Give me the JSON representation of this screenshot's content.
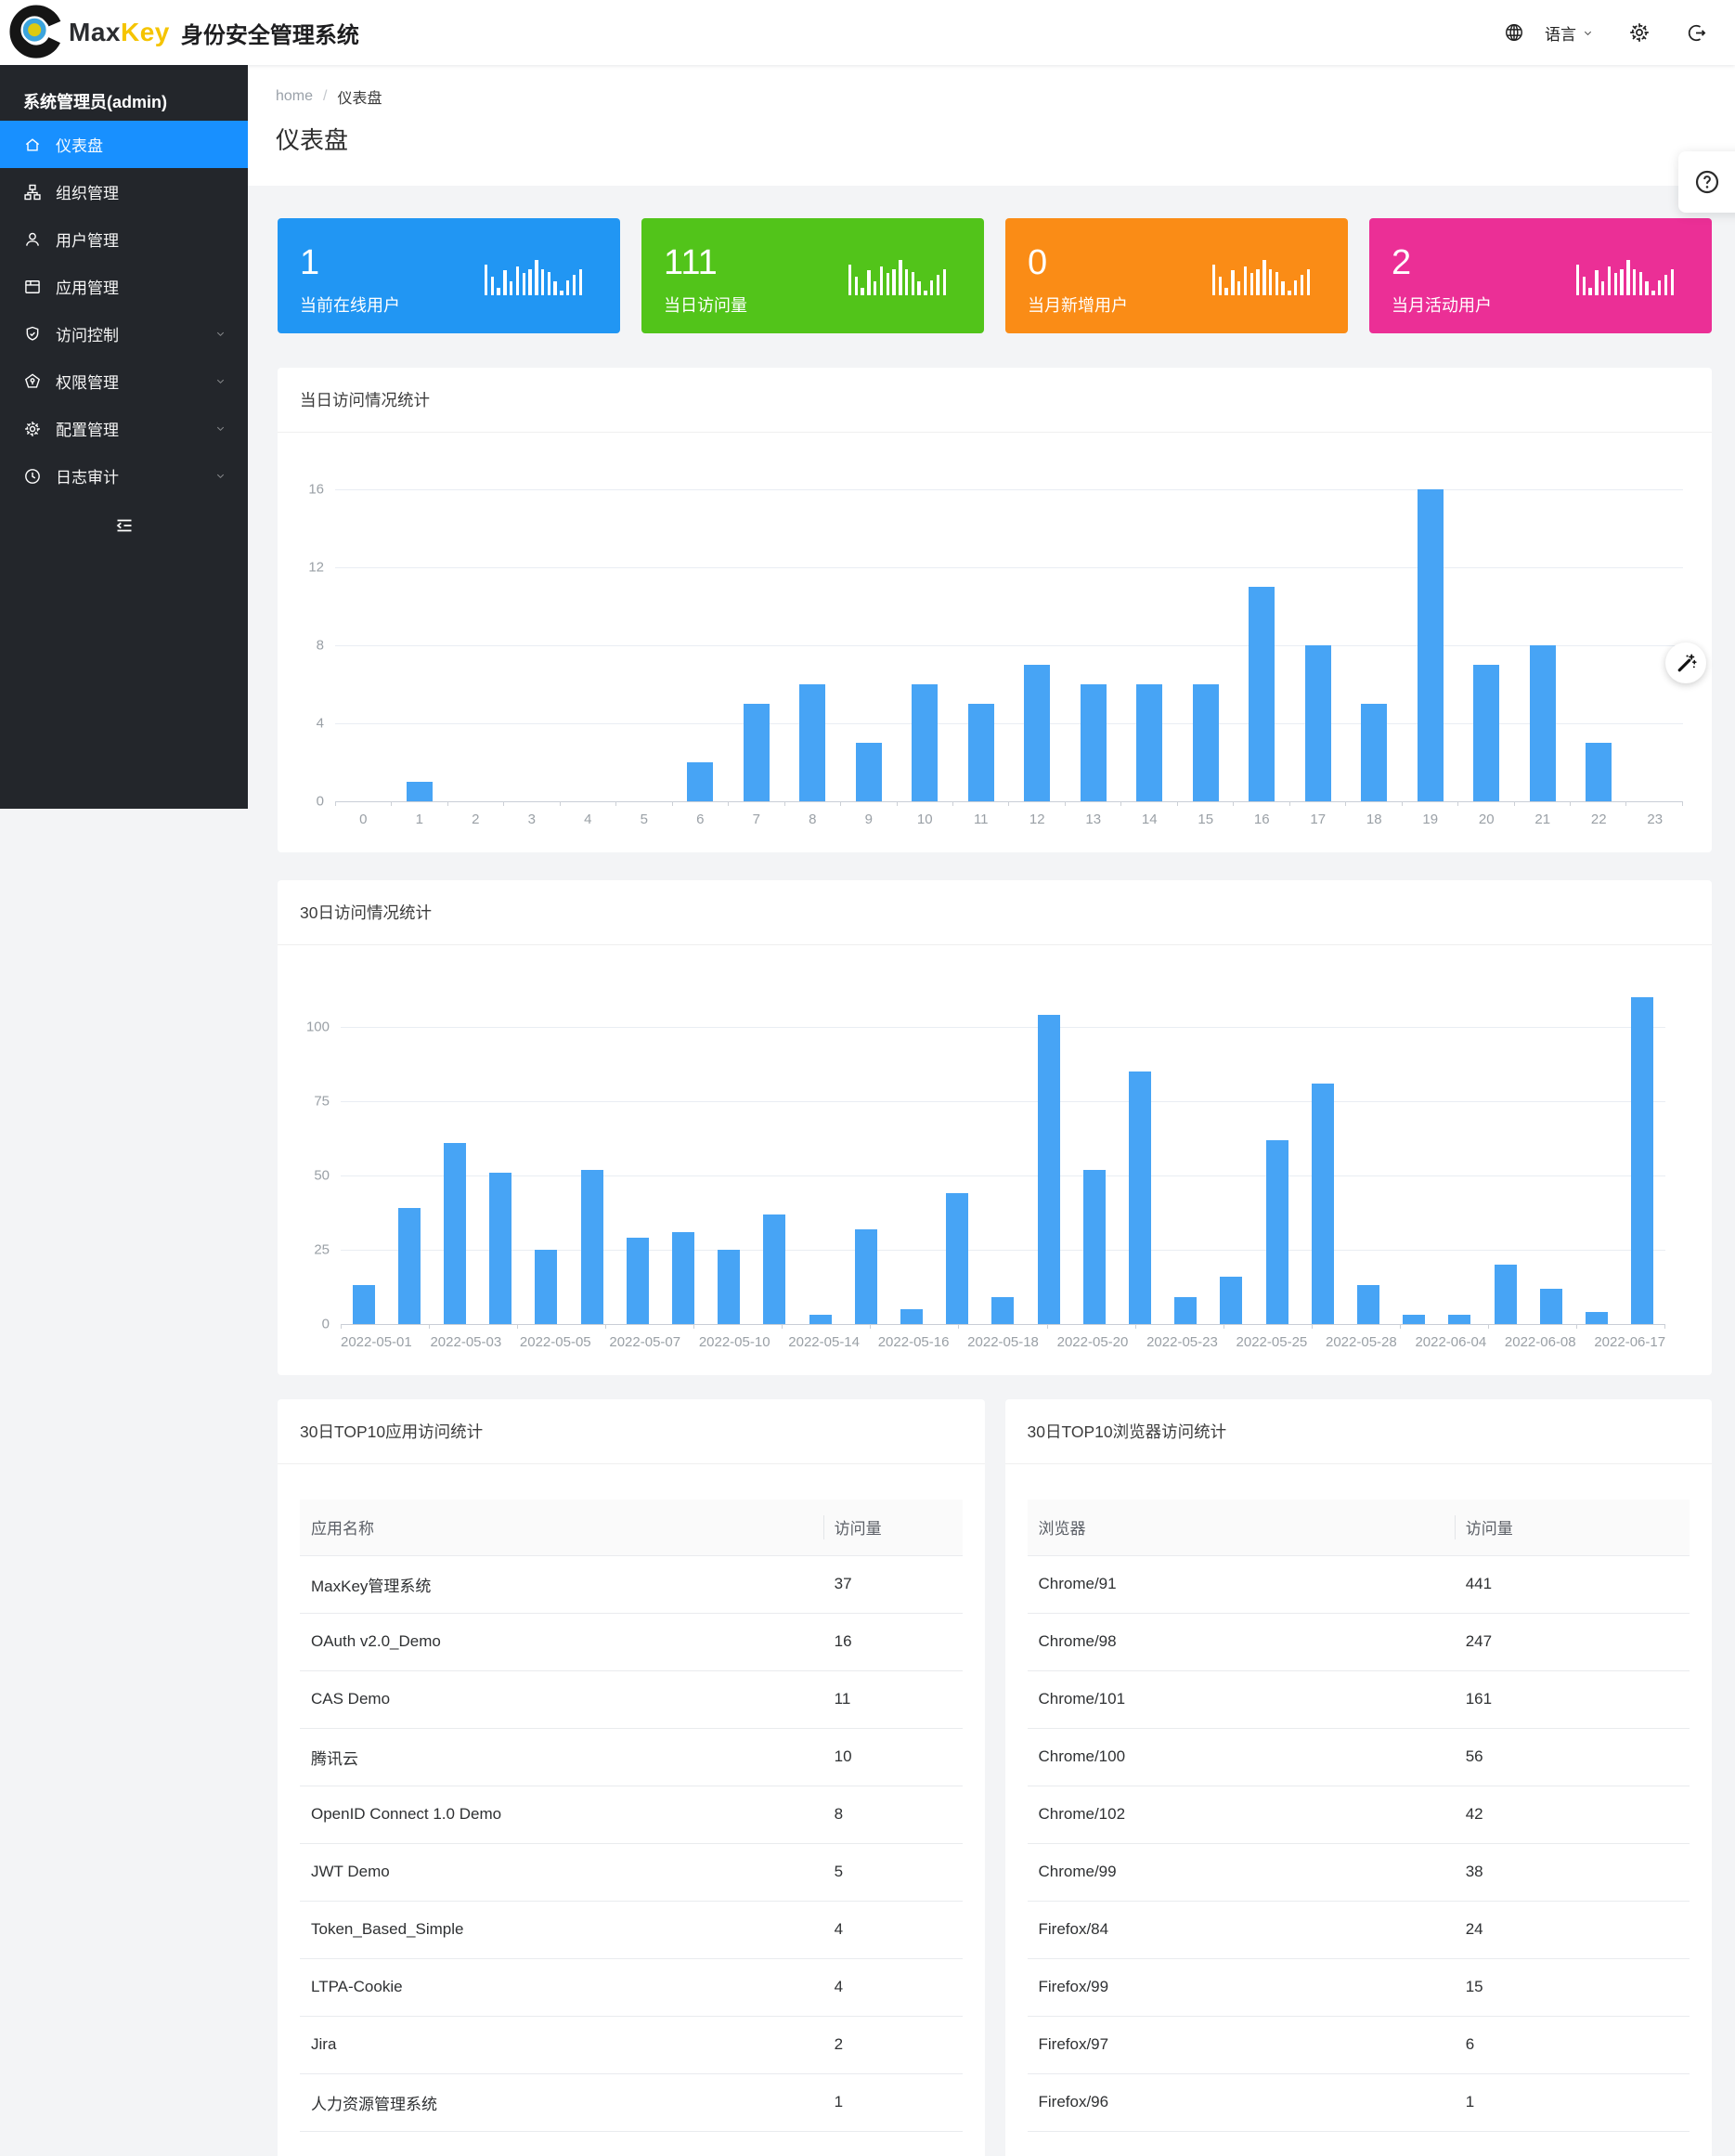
{
  "brand": {
    "name_primary": "Max",
    "name_secondary": "Key",
    "subtitle": "身份安全管理系统"
  },
  "header": {
    "language_label": "语言"
  },
  "sidebar": {
    "user_title": "系统管理员(admin)",
    "items": [
      {
        "id": "dashboard",
        "label": "仪表盘",
        "icon": "home",
        "active": true,
        "has_children": false
      },
      {
        "id": "org",
        "label": "组织管理",
        "icon": "cluster",
        "active": false,
        "has_children": false
      },
      {
        "id": "user",
        "label": "用户管理",
        "icon": "user",
        "active": false,
        "has_children": false
      },
      {
        "id": "app",
        "label": "应用管理",
        "icon": "app",
        "active": false,
        "has_children": false
      },
      {
        "id": "access",
        "label": "访问控制",
        "icon": "shield",
        "active": false,
        "has_children": true
      },
      {
        "id": "permission",
        "label": "权限管理",
        "icon": "cert",
        "active": false,
        "has_children": true
      },
      {
        "id": "config",
        "label": "配置管理",
        "icon": "gear",
        "active": false,
        "has_children": true
      },
      {
        "id": "audit",
        "label": "日志审计",
        "icon": "clock",
        "active": false,
        "has_children": true
      }
    ]
  },
  "breadcrumb": {
    "home": "home",
    "current": "仪表盘"
  },
  "page": {
    "title": "仪表盘"
  },
  "stat_cards": [
    {
      "value": "1",
      "label": "当前在线用户",
      "color": "#2196f3"
    },
    {
      "value": "111",
      "label": "当日访问量",
      "color": "#52c41a"
    },
    {
      "value": "0",
      "label": "当月新增用户",
      "color": "#fa8c16"
    },
    {
      "value": "2",
      "label": "当月活动用户",
      "color": "#eb2f96"
    }
  ],
  "chart_data": [
    {
      "type": "bar",
      "title": "当日访问情况统计",
      "categories": [
        "0",
        "1",
        "2",
        "3",
        "4",
        "5",
        "6",
        "7",
        "8",
        "9",
        "10",
        "11",
        "12",
        "13",
        "14",
        "15",
        "16",
        "17",
        "18",
        "19",
        "20",
        "21",
        "22",
        "23"
      ],
      "values": [
        0,
        1,
        0,
        0,
        0,
        0,
        2,
        5,
        6,
        3,
        6,
        5,
        7,
        6,
        6,
        6,
        11,
        8,
        5,
        16,
        7,
        8,
        3,
        0
      ],
      "ylim": [
        0,
        16
      ],
      "yticks": [
        0,
        4,
        8,
        12,
        16
      ],
      "bar_color": "#47a4f5",
      "grid": true
    },
    {
      "type": "bar",
      "title": "30日访问情况统计",
      "values": [
        13,
        39,
        61,
        51,
        25,
        52,
        29,
        31,
        25,
        37,
        3,
        32,
        5,
        44,
        9,
        104,
        52,
        85,
        9,
        16,
        62,
        81,
        13,
        3,
        3,
        20,
        12,
        4,
        110
      ],
      "x_tick_labels": [
        "2022-05-01",
        "2022-05-03",
        "2022-05-05",
        "2022-05-07",
        "2022-05-10",
        "2022-05-14",
        "2022-05-16",
        "2022-05-18",
        "2022-05-20",
        "2022-05-23",
        "2022-05-25",
        "2022-05-28",
        "2022-06-04",
        "2022-06-08",
        "2022-06-17"
      ],
      "label_every": 2,
      "ylim": [
        0,
        100
      ],
      "yticks": [
        0,
        25,
        50,
        75,
        100
      ],
      "bar_color": "#47a4f5",
      "grid": true
    }
  ],
  "tables": [
    {
      "title": "30日TOP10应用访问统计",
      "columns": [
        "应用名称",
        "访问量"
      ],
      "rows": [
        [
          "MaxKey管理系统",
          "37"
        ],
        [
          "OAuth v2.0_Demo",
          "16"
        ],
        [
          "CAS Demo",
          "11"
        ],
        [
          "腾讯云",
          "10"
        ],
        [
          "OpenID Connect 1.0 Demo",
          "8"
        ],
        [
          "JWT Demo",
          "5"
        ],
        [
          "Token_Based_Simple",
          "4"
        ],
        [
          "LTPA-Cookie",
          "4"
        ],
        [
          "Jira",
          "2"
        ],
        [
          "人力资源管理系统",
          "1"
        ]
      ]
    },
    {
      "title": "30日TOP10浏览器访问统计",
      "columns": [
        "浏览器",
        "访问量"
      ],
      "rows": [
        [
          "Chrome/91",
          "441"
        ],
        [
          "Chrome/98",
          "247"
        ],
        [
          "Chrome/101",
          "161"
        ],
        [
          "Chrome/100",
          "56"
        ],
        [
          "Chrome/102",
          "42"
        ],
        [
          "Chrome/99",
          "38"
        ],
        [
          "Firefox/84",
          "24"
        ],
        [
          "Firefox/99",
          "15"
        ],
        [
          "Firefox/97",
          "6"
        ],
        [
          "Firefox/96",
          "1"
        ]
      ]
    }
  ],
  "colors": {
    "menu_active": "#1890ff",
    "chart_bar": "#47a4f5",
    "sidebar_bg": "#23262b"
  }
}
